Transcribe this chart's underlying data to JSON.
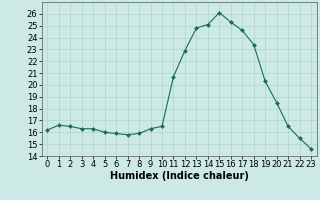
{
  "x": [
    0,
    1,
    2,
    3,
    4,
    5,
    6,
    7,
    8,
    9,
    10,
    11,
    12,
    13,
    14,
    15,
    16,
    17,
    18,
    19,
    20,
    21,
    22,
    23
  ],
  "y": [
    16.2,
    16.6,
    16.5,
    16.3,
    16.3,
    16.0,
    15.9,
    15.8,
    15.9,
    16.3,
    16.5,
    20.7,
    22.9,
    24.8,
    25.1,
    26.1,
    25.3,
    24.6,
    23.4,
    20.3,
    18.5,
    16.5,
    15.5,
    14.6
  ],
  "xlabel": "Humidex (Indice chaleur)",
  "ylim": [
    14,
    27
  ],
  "xlim": [
    -0.5,
    23.5
  ],
  "yticks": [
    14,
    15,
    16,
    17,
    18,
    19,
    20,
    21,
    22,
    23,
    24,
    25,
    26
  ],
  "xticks": [
    0,
    1,
    2,
    3,
    4,
    5,
    6,
    7,
    8,
    9,
    10,
    11,
    12,
    13,
    14,
    15,
    16,
    17,
    18,
    19,
    20,
    21,
    22,
    23
  ],
  "line_color": "#1a6b5a",
  "marker_color": "#1a6b5a",
  "bg_color": "#cce9e5",
  "grid_color": "#b0d4cf",
  "xlabel_fontsize": 7,
  "tick_fontsize": 6,
  "marker": "D",
  "marker_size": 2.0
}
